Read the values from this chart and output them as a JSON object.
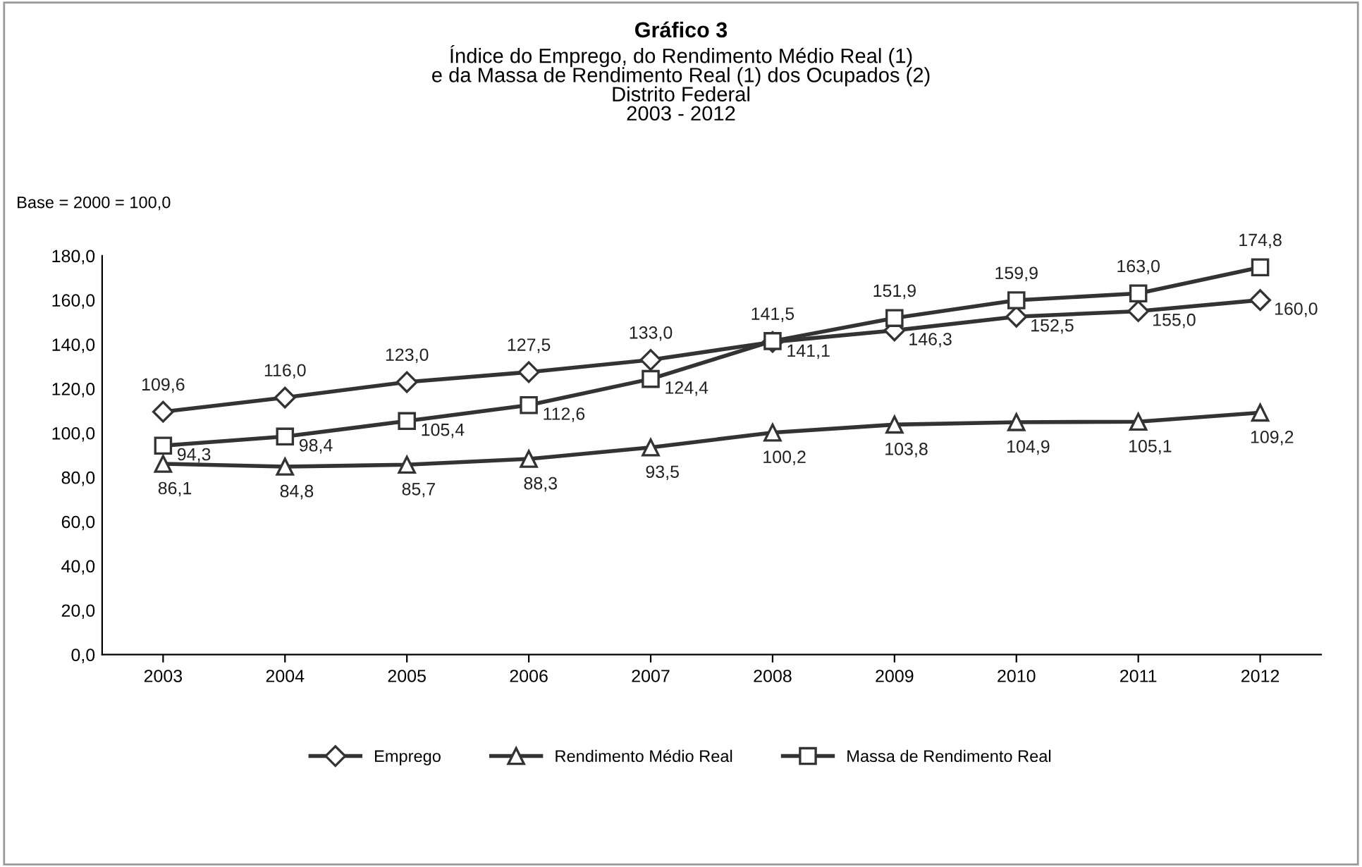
{
  "chart_data": {
    "type": "line",
    "title": "Gráfico 3",
    "subtitle": "Índice do Emprego, do Rendimento Médio Real (1)\ne da Massa de Rendimento Real (1) dos Ocupados (2)\nDistrito Federal\n2003 - 2012",
    "annotations": [
      "Base = 2000 = 100,0"
    ],
    "categories": [
      "2003",
      "2004",
      "2005",
      "2006",
      "2007",
      "2008",
      "2009",
      "2010",
      "2011",
      "2012"
    ],
    "series": [
      {
        "name": "Emprego",
        "color": "#333333",
        "marker": "diamond",
        "values": [
          109.6,
          116.0,
          123.0,
          127.5,
          133.0,
          141.1,
          146.3,
          152.5,
          155.0,
          160.0
        ],
        "value_labels": [
          "109,6",
          "116,0",
          "123,0",
          "127,5",
          "133,0",
          "141,1",
          "146,3",
          "152,5",
          "155,0",
          "160,0"
        ]
      },
      {
        "name": "Rendimento Médio Real",
        "color": "#333333",
        "marker": "triangle",
        "values": [
          86.1,
          84.8,
          85.7,
          88.3,
          93.5,
          100.2,
          103.8,
          104.9,
          105.1,
          109.2
        ],
        "value_labels": [
          "86,1",
          "84,8",
          "85,7",
          "88,3",
          "93,5",
          "100,2",
          "103,8",
          "104,9",
          "105,1",
          "109,2"
        ]
      },
      {
        "name": "Massa de Rendimento Real",
        "color": "#333333",
        "marker": "square",
        "values": [
          94.3,
          98.4,
          105.4,
          112.6,
          124.4,
          141.5,
          151.9,
          159.9,
          163.0,
          174.8
        ],
        "value_labels": [
          "94,3",
          "98,4",
          "105,4",
          "112,6",
          "124,4",
          "141,5",
          "151,9",
          "159,9",
          "163,0",
          "174,8"
        ]
      }
    ],
    "ylim": [
      0,
      180
    ],
    "yticks": [
      {
        "value": 0,
        "label": "0,0"
      },
      {
        "value": 20,
        "label": "20,0"
      },
      {
        "value": 40,
        "label": "40,0"
      },
      {
        "value": 60,
        "label": "60,0"
      },
      {
        "value": 80,
        "label": "80,0"
      },
      {
        "value": 100,
        "label": "100,0"
      },
      {
        "value": 120,
        "label": "120,0"
      },
      {
        "value": 140,
        "label": "140,0"
      },
      {
        "value": 160,
        "label": "160,0"
      },
      {
        "value": 180,
        "label": "180,0"
      }
    ],
    "grid": false,
    "legend": "bottom",
    "line_style": "solid"
  }
}
